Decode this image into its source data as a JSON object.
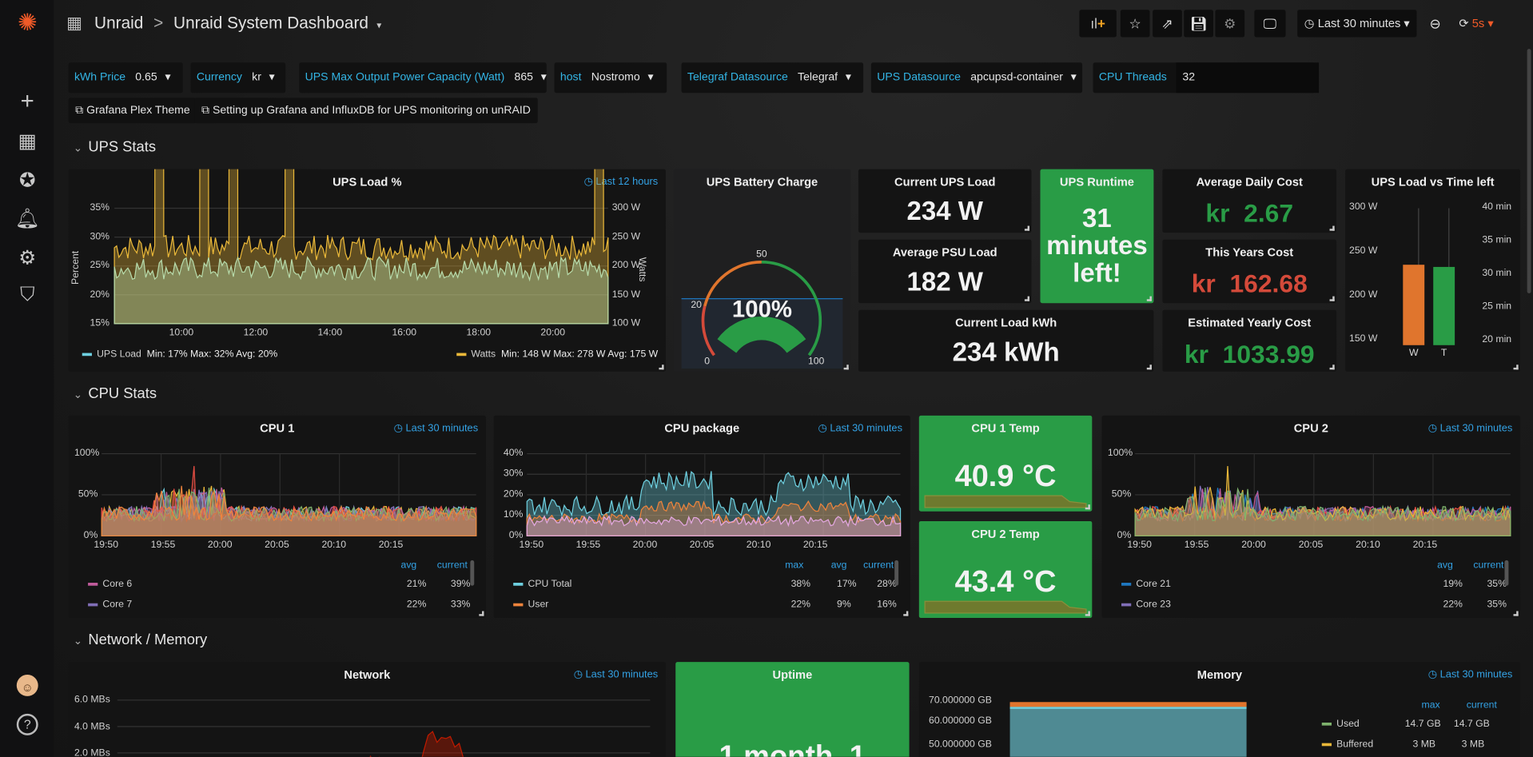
{
  "sidebar": {
    "items": [
      {
        "icon": "grafana-logo-icon"
      },
      {
        "icon": "plus-icon",
        "label": "Create"
      },
      {
        "icon": "dashboards-grid-icon",
        "label": "Dashboards"
      },
      {
        "icon": "compass-explore-icon",
        "label": "Explore"
      },
      {
        "icon": "bell-alerting-icon",
        "label": "Alerting"
      },
      {
        "icon": "gear-configuration-icon",
        "label": "Configuration"
      },
      {
        "icon": "shield-admin-icon",
        "label": "Server Admin"
      },
      {
        "icon": "user-avatar-icon"
      },
      {
        "icon": "help-icon",
        "label": "?"
      }
    ]
  },
  "header": {
    "folder": "Unraid",
    "separator": ">",
    "title": "Unraid System Dashboard",
    "time_range": "Last 30 minutes",
    "refresh": "5s"
  },
  "variables": [
    {
      "label": "kWh Price",
      "value": "0.65"
    },
    {
      "label": "Currency",
      "value": "kr"
    },
    {
      "label": "UPS Max Output Power Capacity (Watt)",
      "value": "865"
    },
    {
      "label": "host",
      "value": "Nostromo"
    },
    {
      "label": "Telegraf Datasource",
      "value": "Telegraf"
    },
    {
      "label": "UPS Datasource",
      "value": "apcupsd-container"
    },
    {
      "label": "CPU Threads",
      "value": "32"
    }
  ],
  "links": [
    "Grafana Plex Theme",
    "Setting up Grafana and InfluxDB for UPS monitoring on unRAID"
  ],
  "sections": [
    "UPS Stats",
    "CPU Stats",
    "Network / Memory"
  ],
  "ups": {
    "load_panel": {
      "title": "UPS Load %",
      "time": "Last 12 hours"
    },
    "battery": {
      "title": "UPS Battery Charge",
      "value": "100%",
      "percent": 100,
      "ticks": [
        "0",
        "20",
        "50",
        "100"
      ]
    },
    "current_load": {
      "title": "Current UPS Load",
      "value": "234 W"
    },
    "avg_psu": {
      "title": "Average PSU Load",
      "value": "182 W"
    },
    "load_kwh": {
      "title": "Current Load kWh",
      "value": "234 kWh"
    },
    "runtime": {
      "title": "UPS Runtime",
      "value_lines": [
        "31",
        "minutes",
        "left!"
      ]
    },
    "daily": {
      "title": "Average Daily Cost",
      "unit": "kr",
      "value": "2.67",
      "color": "#299c46"
    },
    "yearly": {
      "title": "This Years Cost",
      "unit": "kr",
      "value": "162.68",
      "color": "#d44a3a"
    },
    "est": {
      "title": "Estimated Yearly Cost",
      "unit": "kr",
      "value": "1033.99",
      "color": "#299c46"
    },
    "vs": {
      "title": "UPS Load vs Time left"
    }
  },
  "cpu": {
    "cpu1": {
      "title": "CPU 1",
      "time": "Last 30 minutes",
      "cols": [
        "avg",
        "current"
      ],
      "rows": [
        {
          "name": "Core 6",
          "color": "#c15c9c",
          "avg": "21%",
          "current": "39%"
        },
        {
          "name": "Core 7",
          "color": "#806eb7",
          "avg": "22%",
          "current": "33%"
        }
      ]
    },
    "pkg": {
      "title": "CPU package",
      "time": "Last 30 minutes",
      "cols": [
        "max",
        "avg",
        "current"
      ],
      "rows": [
        {
          "name": "CPU Total",
          "color": "#6ed0e0",
          "max": "38%",
          "avg": "17%",
          "current": "28%"
        },
        {
          "name": "User",
          "color": "#ef843c",
          "max": "22%",
          "avg": "9%",
          "current": "16%"
        }
      ]
    },
    "t1": {
      "title": "CPU 1 Temp",
      "value": "40.9 °C"
    },
    "t2": {
      "title": "CPU 2 Temp",
      "value": "43.4 °C"
    },
    "cpu2": {
      "title": "CPU 2",
      "time": "Last 30 minutes",
      "cols": [
        "avg",
        "current"
      ],
      "rows": [
        {
          "name": "Core 21",
          "color": "#1f78c1",
          "avg": "19%",
          "current": "35%"
        },
        {
          "name": "Core 23",
          "color": "#806eb7",
          "avg": "22%",
          "current": "35%"
        }
      ]
    }
  },
  "net": {
    "network": {
      "title": "Network",
      "time": "Last 30 minutes"
    },
    "uptime": {
      "title": "Uptime",
      "value": "1 month, 1"
    },
    "memory": {
      "title": "Memory",
      "time": "Last 30 minutes",
      "cols": [
        "max",
        "current"
      ],
      "rows": [
        {
          "name": "Used",
          "color": "#7eb26d",
          "max": "14.7 GB",
          "current": "14.7 GB"
        },
        {
          "name": "Buffered",
          "color": "#eab839",
          "max": "3 MB",
          "current": "3 MB"
        }
      ]
    }
  },
  "chart_data": [
    {
      "type": "line",
      "title": "UPS Load %",
      "ylabel": "Percent",
      "y2label": "Watts",
      "ylim": [
        15,
        35
      ],
      "y2lim": [
        100,
        300
      ],
      "yticks": [
        "35%",
        "30%",
        "25%",
        "20%",
        "15%"
      ],
      "y2ticks": [
        "300 W",
        "250 W",
        "200 W",
        "150 W",
        "100 W"
      ],
      "xticks": [
        "10:00",
        "12:00",
        "14:00",
        "16:00",
        "18:00",
        "20:00"
      ],
      "series": [
        {
          "name": "UPS Load",
          "color": "#6ed0e0",
          "stats": "Min: 17%  Max: 32%  Avg: 20%"
        },
        {
          "name": "Watts",
          "color": "#eab839",
          "stats": "Min: 148 W  Max: 278 W  Avg: 175 W"
        }
      ]
    },
    {
      "type": "bar",
      "title": "UPS Load vs Time left",
      "categories": [
        "W",
        "T"
      ],
      "values": [
        234,
        31
      ],
      "colors": [
        "#e0752d",
        "#299c46"
      ],
      "yticks": [
        "300 W",
        "250 W",
        "200 W",
        "150 W"
      ],
      "y2ticks": [
        "40 min",
        "35 min",
        "30 min",
        "25 min",
        "20 min"
      ],
      "ylim": [
        140,
        300
      ],
      "y2lim": [
        19,
        40
      ]
    },
    {
      "type": "area",
      "title": "CPU 1",
      "yticks": [
        "100%",
        "50%",
        "0%"
      ],
      "xticks": [
        "19:50",
        "19:55",
        "20:00",
        "20:05",
        "20:10",
        "20:15"
      ]
    },
    {
      "type": "area",
      "title": "CPU package",
      "yticks": [
        "40%",
        "30%",
        "20%",
        "10%",
        "0%"
      ],
      "xticks": [
        "19:50",
        "19:55",
        "20:00",
        "20:05",
        "20:10",
        "20:15"
      ]
    },
    {
      "type": "area",
      "title": "CPU 2",
      "yticks": [
        "100%",
        "50%",
        "0%"
      ],
      "xticks": [
        "19:50",
        "19:55",
        "20:00",
        "20:05",
        "20:10",
        "20:15"
      ]
    },
    {
      "type": "area",
      "title": "Network",
      "yticks": [
        "6.0 MBs",
        "4.0 MBs",
        "2.0 MBs"
      ]
    },
    {
      "type": "area",
      "title": "Memory",
      "yticks": [
        "70.000000 GB",
        "60.000000 GB",
        "50.000000 GB"
      ]
    }
  ]
}
